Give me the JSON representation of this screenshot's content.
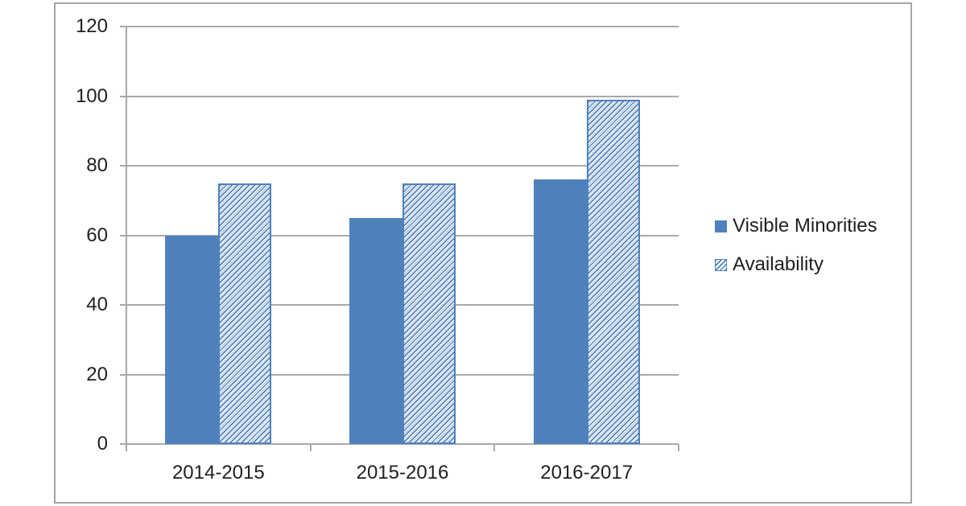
{
  "chart_data": {
    "type": "bar",
    "categories": [
      "2014-2015",
      "2015-2016",
      "2016-2017"
    ],
    "series": [
      {
        "name": "Visible Minorities",
        "values": [
          60,
          65,
          76
        ],
        "fill": "solid",
        "color": "#4F81BD"
      },
      {
        "name": "Availability",
        "values": [
          75,
          75,
          99
        ],
        "fill": "hatch",
        "color": "#4F81BD"
      }
    ],
    "title": "",
    "xlabel": "",
    "ylabel": "",
    "ylim": [
      0,
      120
    ],
    "yticks": [
      0,
      20,
      40,
      60,
      80,
      100,
      120
    ],
    "grid": true,
    "legend_position": "right",
    "colors": {
      "bar_blue": "#4F81BD",
      "hatch_stripe_light": "#9AB4D6",
      "gridline": "#A9A9A9",
      "axis": "#A9A9A9",
      "frame_border": "#A6A6A6",
      "text": "#1F1F1F",
      "background": "#FFFFFF"
    }
  }
}
